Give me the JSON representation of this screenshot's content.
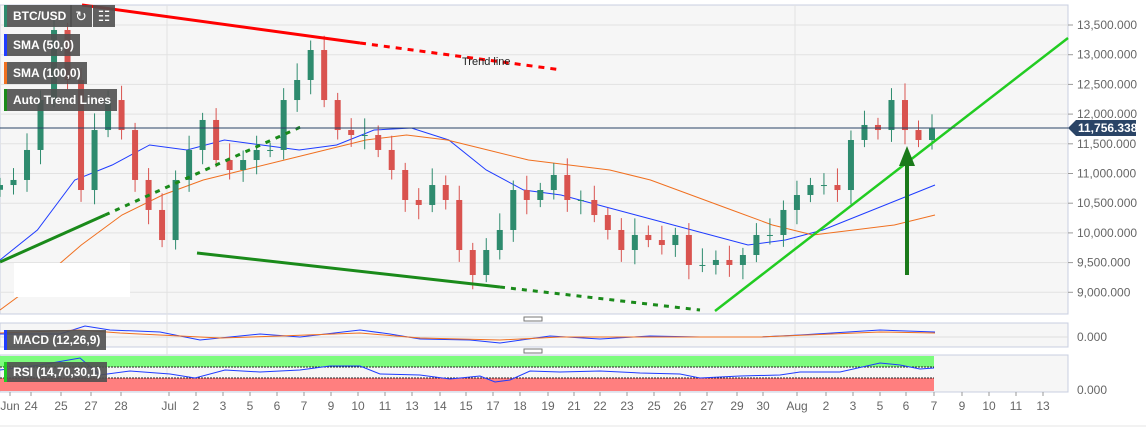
{
  "symbol": "BTC/USD",
  "indicators": [
    {
      "label": "SMA (50,0)",
      "color": "#1f3cff"
    },
    {
      "label": "SMA (100,0)",
      "color": "#f07020"
    },
    {
      "label": "Auto Trend Lines",
      "color": "#1a8a1a"
    }
  ],
  "macd_label": "MACD (12,26,9)",
  "rsi_label": "RSI (14,70,30,1)",
  "annotation": "Trend line",
  "current_price": "11,756.338",
  "chart_data": {
    "type": "candlestick",
    "title": "BTC/USD",
    "y_ticks": [
      "13,500.000",
      "13,000.000",
      "12,500.000",
      "12,000.000",
      "11,500.000",
      "11,000.000",
      "10,500.000",
      "10,000.000",
      "9,500.000",
      "9,000.000"
    ],
    "ylim": [
      8700,
      13900
    ],
    "macd_tick": "0.000",
    "rsi_tick": "0.000",
    "x_ticks": [
      "Jun",
      "24",
      "25",
      "27",
      "28",
      "Jul",
      "2",
      "3",
      "5",
      "6",
      "7",
      "9",
      "10",
      "11",
      "13",
      "14",
      "15",
      "17",
      "18",
      "19",
      "21",
      "22",
      "23",
      "25",
      "26",
      "27",
      "29",
      "30",
      "Aug",
      "2",
      "3",
      "5",
      "6",
      "7",
      "9",
      "10",
      "11",
      "13"
    ],
    "closes": [
      10806,
      10891,
      11396,
      12237,
      13416,
      12574,
      10722,
      11732,
      12237,
      11732,
      10891,
      10386,
      9880,
      10891,
      11396,
      11901,
      11227,
      11059,
      11227,
      11396,
      11396,
      12237,
      12574,
      13079,
      12237,
      11732,
      11648,
      11648,
      11396,
      11059,
      10554,
      10470,
      10806,
      10554,
      9712,
      9291,
      9712,
      10049,
      10722,
      10554,
      10722,
      10975,
      10554,
      10554,
      10301,
      10049,
      9712,
      9965,
      9880,
      9796,
      9965,
      9460,
      9460,
      9544,
      9460,
      9628,
      9965,
      9965,
      10386,
      10638,
      10806,
      10806,
      10722,
      11564,
      11817,
      11732,
      12237,
      11732,
      11564,
      11756
    ],
    "sma50": [
      9544,
      10049,
      10891,
      11143,
      11480,
      11396,
      11564,
      11480,
      11396,
      11480,
      11732,
      11766,
      11564,
      11059,
      10722,
      10638,
      10470,
      10301,
      10133,
      9965,
      9796,
      9880,
      10049,
      10301,
      10554,
      10806
    ],
    "sma100": [
      8702,
      9207,
      9796,
      10301,
      10638,
      10891,
      11059,
      11227,
      11396,
      11564,
      11648,
      11564,
      11396,
      11227,
      11143,
      11059,
      10891,
      10638,
      10386,
      10133,
      9965,
      10049,
      10133,
      10301
    ],
    "colors": {
      "up": "#2e8b6e",
      "down": "#d9534f",
      "trend_red": "#ff0000",
      "trend_green": "#22cc22",
      "arrow": "#1a7a1a",
      "price_line": "#2a4466"
    }
  }
}
